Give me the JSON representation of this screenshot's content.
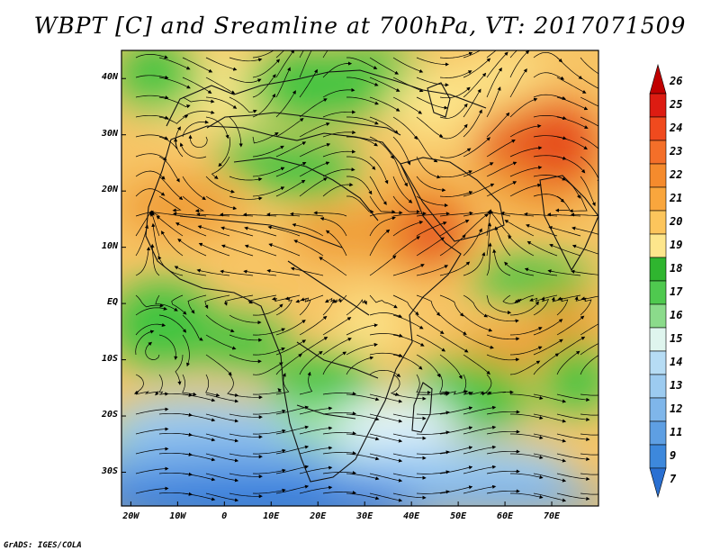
{
  "title": "WBPT [C] and Sreamline at 700hPa, VT: 2017071509",
  "footer": "GrADS: IGES/COLA",
  "map": {
    "projection": "lat-lon",
    "lon_range": [
      -22,
      80
    ],
    "lat_range": [
      -36,
      45
    ],
    "x_ticks": [
      {
        "lon": -20,
        "label": "20W"
      },
      {
        "lon": -10,
        "label": "10W"
      },
      {
        "lon": 0,
        "label": "0"
      },
      {
        "lon": 10,
        "label": "10E"
      },
      {
        "lon": 20,
        "label": "20E"
      },
      {
        "lon": 30,
        "label": "30E"
      },
      {
        "lon": 40,
        "label": "40E"
      },
      {
        "lon": 50,
        "label": "50E"
      },
      {
        "lon": 60,
        "label": "60E"
      },
      {
        "lon": 70,
        "label": "70E"
      }
    ],
    "y_ticks": [
      {
        "lat": 40,
        "label": "40N"
      },
      {
        "lat": 30,
        "label": "30N"
      },
      {
        "lat": 20,
        "label": "20N"
      },
      {
        "lat": 10,
        "label": "10N"
      },
      {
        "lat": 0,
        "label": "EQ"
      },
      {
        "lat": -10,
        "label": "10S"
      },
      {
        "lat": -20,
        "label": "20S"
      },
      {
        "lat": -30,
        "label": "30S"
      }
    ],
    "field_colors": {
      "deep_blue": "#2a78dc",
      "light_blue": "#9fcdf2",
      "pale": "#e6f6fa",
      "green": "#3fc43f",
      "light_green": "#a7e7a1",
      "yellow": "#fce58a",
      "tan": "#f7c465",
      "orange": "#ef9a36",
      "red": "#e6481c"
    },
    "coastline_color": "#111111",
    "streamline_color": "#000000"
  },
  "colorbar": {
    "labels": [
      "26",
      "25",
      "24",
      "23",
      "22",
      "21",
      "20",
      "19",
      "18",
      "17",
      "16",
      "15",
      "14",
      "13",
      "12",
      "11",
      "9",
      "7"
    ],
    "colors": [
      "#c00000",
      "#dd1c12",
      "#f04a1e",
      "#f46f29",
      "#f58b2d",
      "#f9a63d",
      "#fcc55c",
      "#fde68c",
      "#2fb52f",
      "#4fc94f",
      "#8bdb8b",
      "#dff5ee",
      "#b6dcf4",
      "#9ccbf0",
      "#7fb6ea",
      "#5e9fe3",
      "#3d88dc",
      "#2a70d2"
    ]
  }
}
